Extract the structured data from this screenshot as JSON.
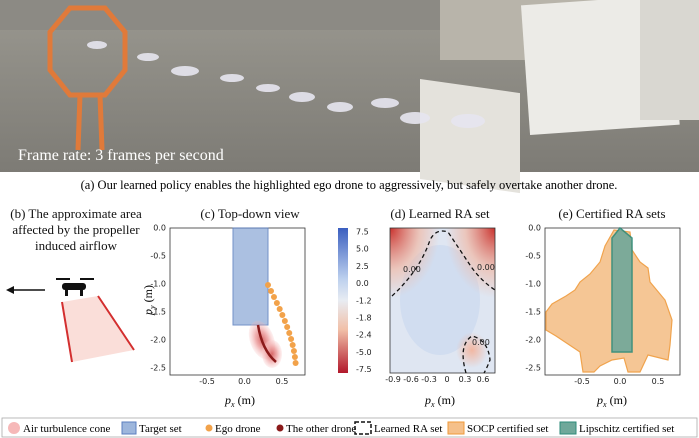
{
  "photo": {
    "overlay": "Frame rate: 3 frames per second"
  },
  "caption_a": "(a) Our learned policy enables the highlighted ego drone to aggressively, but safely overtake another drone.",
  "panel_b": {
    "lines": [
      "(b) The approximate area",
      "affected by the propeller",
      "induced airflow"
    ]
  },
  "panel_c": {
    "title": "(c) Top-down view",
    "xlabel": {
      "symbol": "p",
      "sub": "x",
      "unit": "(m)"
    },
    "ylabel": {
      "symbol": "p",
      "sub": "y",
      "unit": "(m)"
    },
    "xticks": [
      "-0.5",
      "0.0",
      "0.5"
    ],
    "yticks": [
      "0.0",
      "-0.5",
      "-1.0",
      "-1.5",
      "-2.0",
      "-2.5"
    ]
  },
  "panel_d": {
    "title": "(d) Learned RA set",
    "colorbar_ticks": [
      "7.5",
      "5.0",
      "2.5",
      "0.0",
      "-1.2",
      "-1.8",
      "-2.4",
      "-5.0",
      "-7.5"
    ],
    "contour_labels": [
      "0.00",
      "0.00",
      "0.00"
    ],
    "xlabel": {
      "symbol": "p",
      "sub": "x",
      "unit": "(m)"
    },
    "xticks": [
      "-0.9",
      "-0.6",
      "-0.3",
      "0",
      "0.3",
      "0.6"
    ]
  },
  "panel_e": {
    "title": "(e) Certified RA sets",
    "xlabel": {
      "symbol": "p",
      "sub": "x",
      "unit": "(m)"
    },
    "xticks": [
      "-0.5",
      "0.0",
      "0.5"
    ],
    "yticks": [
      "0.0",
      "-0.5",
      "-1.0",
      "-1.5",
      "-2.0",
      "-2.5"
    ]
  },
  "legend": [
    "Air turbulence cone",
    "Target set",
    "Ego drone",
    "The other drone",
    "Learned RA set",
    "SOCP certified set",
    "Lipschitz certified set"
  ]
}
